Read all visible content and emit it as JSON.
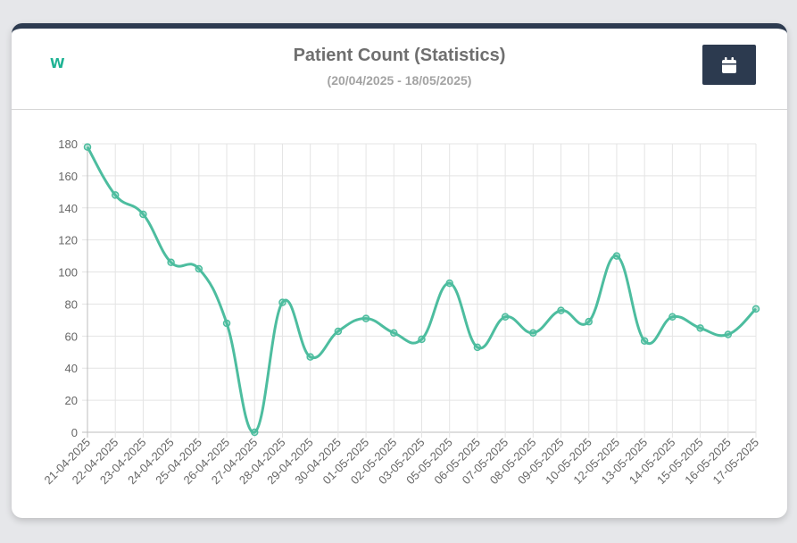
{
  "header": {
    "logo_text": "W",
    "title": "Patient Count (Statistics)",
    "subtitle": "(20/04/2025 - 18/05/2025)",
    "calendar_button_icon": "calendar-icon"
  },
  "colors": {
    "line": "#4dbd9f",
    "accent": "#1fb394",
    "button": "#2c3a4f",
    "card_border": "#2c3a4f"
  },
  "chart_data": {
    "type": "line",
    "title": "",
    "xlabel": "",
    "ylabel": "",
    "ylim": [
      0,
      180
    ],
    "yticks": [
      0,
      20,
      40,
      60,
      80,
      100,
      120,
      140,
      160,
      180
    ],
    "grid": true,
    "legend": "none",
    "categories": [
      "21-04-2025",
      "22-04-2025",
      "23-04-2025",
      "24-04-2025",
      "25-04-2025",
      "26-04-2025",
      "27-04-2025",
      "28-04-2025",
      "29-04-2025",
      "30-04-2025",
      "01-05-2025",
      "02-05-2025",
      "03-05-2025",
      "05-05-2025",
      "06-05-2025",
      "07-05-2025",
      "08-05-2025",
      "09-05-2025",
      "10-05-2025",
      "12-05-2025",
      "13-05-2025",
      "14-05-2025",
      "15-05-2025",
      "16-05-2025",
      "17-05-2025"
    ],
    "series": [
      {
        "values": [
          178,
          148,
          136,
          106,
          102,
          68,
          0,
          81,
          47,
          63,
          71,
          62,
          58,
          93,
          53,
          72,
          62,
          76,
          69,
          110,
          57,
          72,
          65,
          61,
          77
        ]
      }
    ]
  }
}
